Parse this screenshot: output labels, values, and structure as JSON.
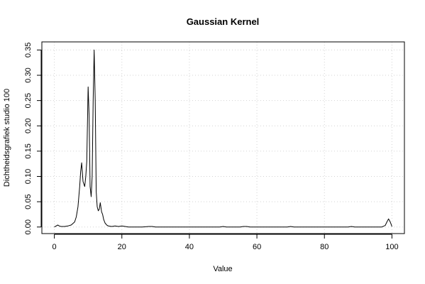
{
  "chart_data": {
    "type": "line",
    "title": "Gaussian Kernel",
    "xlabel": "Value",
    "ylabel": "Dichtheidsgrafiek studio 100",
    "xlim": [
      -3.7,
      103.7
    ],
    "ylim": [
      -0.013,
      0.366
    ],
    "xticks": [
      0,
      20,
      40,
      60,
      80,
      100
    ],
    "yticks": [
      0.0,
      0.05,
      0.1,
      0.15,
      0.2,
      0.25,
      0.3,
      0.35
    ],
    "xtick_labels": [
      "0",
      "20",
      "40",
      "60",
      "80",
      "100"
    ],
    "ytick_labels": [
      "0.00",
      "0.05",
      "0.10",
      "0.15",
      "0.20",
      "0.25",
      "0.30",
      "0.35"
    ],
    "grid": true,
    "legend": "none",
    "series": [
      {
        "x": [
          0,
          0.5,
          1,
          1.5,
          2,
          3,
          4,
          5,
          6,
          6.5,
          7,
          7.5,
          7.8,
          8.1,
          8.5,
          9,
          9.3,
          9.6,
          10,
          10.3,
          10.6,
          10.9,
          11.2,
          11.5,
          11.8,
          12.1,
          12.4,
          12.7,
          13,
          13.3,
          13.6,
          14,
          14.3,
          14.6,
          15,
          15.5,
          16,
          17,
          18,
          19,
          20,
          21,
          22,
          24,
          26,
          28,
          29,
          30,
          35,
          40,
          45,
          49,
          50,
          51,
          55,
          56,
          57,
          58,
          60,
          65,
          69,
          70,
          71,
          75,
          80,
          85,
          87,
          88,
          89,
          95,
          97,
          98,
          98.5,
          99,
          99.5,
          100
        ],
        "y": [
          0,
          0.002,
          0.004,
          0.002,
          0.001,
          0.001,
          0.002,
          0.004,
          0.01,
          0.02,
          0.04,
          0.08,
          0.11,
          0.127,
          0.09,
          0.08,
          0.1,
          0.13,
          0.277,
          0.22,
          0.08,
          0.06,
          0.1,
          0.25,
          0.35,
          0.25,
          0.07,
          0.04,
          0.032,
          0.035,
          0.048,
          0.03,
          0.025,
          0.015,
          0.008,
          0.004,
          0.002,
          0.001,
          0.002,
          0.001,
          0.002,
          0.001,
          0,
          0,
          0,
          0.001,
          0.001,
          0,
          0,
          0,
          0,
          0,
          0.001,
          0,
          0,
          0.001,
          0.001,
          0,
          0,
          0,
          0,
          0.001,
          0,
          0,
          0,
          0,
          0,
          0.001,
          0,
          0,
          0,
          0.003,
          0.01,
          0.016,
          0.01,
          0.001
        ]
      }
    ]
  }
}
